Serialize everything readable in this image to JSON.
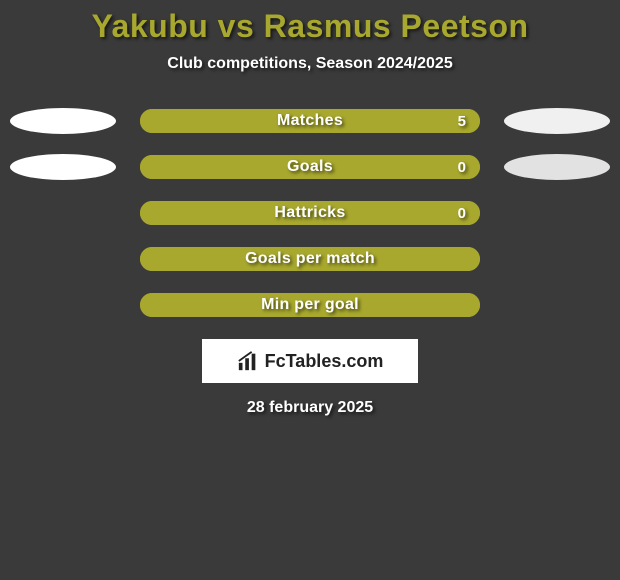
{
  "title": "Yakubu vs Rasmus Peetson",
  "subtitle": "Club competitions, Season 2024/2025",
  "date": "28 february 2025",
  "logo_text": "FcTables.com",
  "colors": {
    "background": "#3a3a3a",
    "title_color": "#a8a82e",
    "text_color": "#ffffff",
    "bar_fill": "#a8a82e",
    "bar_outline": "#a8a82e",
    "oval_left": "#ffffff",
    "oval_right": "#f0f0f0",
    "logo_bg": "#ffffff",
    "logo_text_color": "#222222"
  },
  "stats": [
    {
      "label": "Matches",
      "value": "5",
      "fill_pct": 100,
      "show_value": true,
      "left_oval": true,
      "right_oval": true,
      "right_oval_color": "#f0f0f0"
    },
    {
      "label": "Goals",
      "value": "0",
      "fill_pct": 100,
      "show_value": true,
      "left_oval": true,
      "right_oval": true,
      "right_oval_color": "#e2e2e2"
    },
    {
      "label": "Hattricks",
      "value": "0",
      "fill_pct": 100,
      "show_value": true,
      "left_oval": false,
      "right_oval": false,
      "right_oval_color": "#e2e2e2"
    },
    {
      "label": "Goals per match",
      "value": "",
      "fill_pct": 100,
      "show_value": false,
      "left_oval": false,
      "right_oval": false,
      "right_oval_color": "#e2e2e2"
    },
    {
      "label": "Min per goal",
      "value": "",
      "fill_pct": 100,
      "show_value": false,
      "left_oval": false,
      "right_oval": false,
      "right_oval_color": "#e2e2e2"
    }
  ]
}
